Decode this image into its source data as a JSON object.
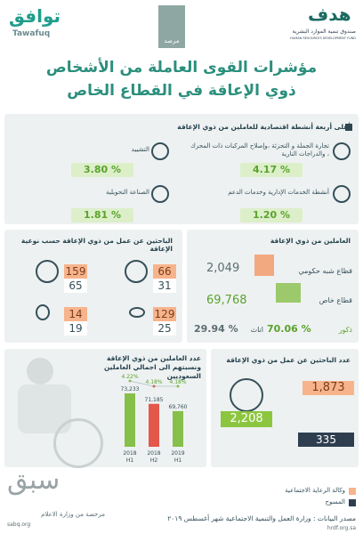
{
  "header": {
    "brand_ar": "توافق",
    "brand_en": "Tawafuq",
    "center_logo": "مرصد",
    "fund_logo": "هدف",
    "fund_ar": "صندوق تنمية الموارد البشرية",
    "fund_en": "HUMAN RESOURCES DEVELOPMENT FUND"
  },
  "title": [
    "مؤشرات القوى العاملة من الأشخاص",
    "ذوي الإعاقة في القطاع الخاص"
  ],
  "activities": {
    "title": "أعلى أربعة أنشطة اقتصادية للعاملين من ذوي الإعاقة",
    "items": [
      {
        "label": "تجارة الجملة و التجزئة ،وإصلاح المركبات ذات المحرك ، والدراجات النارية",
        "value": "4.17 %"
      },
      {
        "label": "التشييد",
        "value": "3.80 %"
      },
      {
        "label": "أنشطة الخدمات الإدارية وخدمات الدعم",
        "value": "1.20 %"
      },
      {
        "label": "الصناعة التحويلية",
        "value": "1.81 %"
      }
    ]
  },
  "job_seekers_by_type": {
    "title": "الباحثين عن عمل من ذوي الإعاقة حسب نوعية الإعاقة",
    "cells": [
      {
        "top": "66",
        "bottom": "31"
      },
      {
        "top": "159",
        "bottom": "65"
      },
      {
        "top": "129",
        "bottom": "25"
      },
      {
        "top": "14",
        "bottom": "19"
      }
    ]
  },
  "employees": {
    "title": "العاملين من ذوي الإعاقة",
    "semi_gov": {
      "label": "قطاع شبه حكومي",
      "value": "2,049"
    },
    "private": {
      "label": "قطاع خاص",
      "value": "69,768"
    },
    "male": {
      "label": "ذكور",
      "value": "70.06 %"
    },
    "female": {
      "label": "اناث",
      "value": "29.94 %"
    }
  },
  "chart_data": {
    "type": "bar",
    "title": "عدد العاملين من ذوي الإعاقة ونسبتهم الى اجمالي العاملين السعوديين",
    "categories": [
      "2018",
      "2018",
      "2019"
    ],
    "sub_categories": [
      "H1",
      "H2",
      "H1"
    ],
    "values": [
      73233,
      71185,
      69760
    ],
    "value_labels": [
      "73,233",
      "71,185",
      "69,760"
    ],
    "shares": [
      4.22,
      4.18,
      4.18
    ],
    "share_labels": [
      "4.22%",
      "4.18%",
      "4.18%"
    ],
    "colors": [
      "#86c04a",
      "#e3584b",
      "#86c04a"
    ]
  },
  "job_seekers": {
    "title": "عدد الباحثين عن عمل من ذوي الإعاقة",
    "social": "1,873",
    "total": "2,208",
    "surveys": "335"
  },
  "legend": [
    "وكالة الرعاية الاجتماعية",
    "المسوح"
  ],
  "source": "مصدر البيانات : وزارة العمل والتنمية الاجتماعية شهر أغسطس ٢٠١٩",
  "website": "hrdf.org.sa",
  "watermark": {
    "name": "سبق",
    "license": "مرخصة من وزارة الاعلام",
    "site": "sabq.org"
  }
}
